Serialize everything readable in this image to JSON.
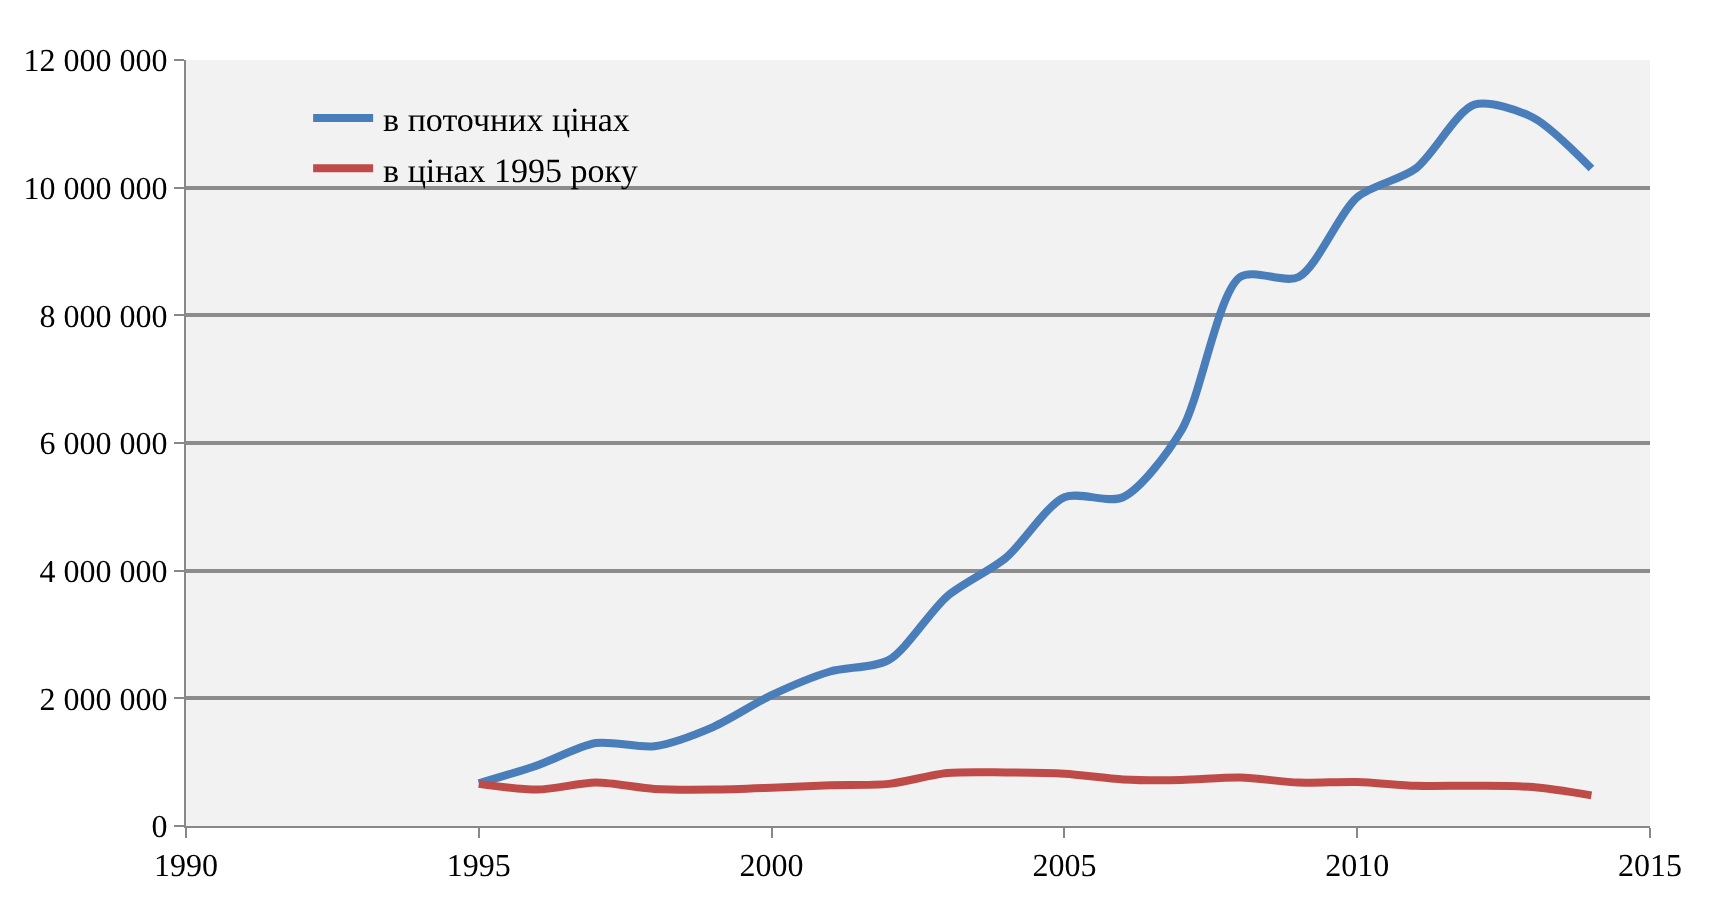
{
  "chart_data": {
    "type": "line",
    "x": [
      1995,
      1996,
      1997,
      1998,
      1999,
      2000,
      2001,
      2002,
      2003,
      2004,
      2005,
      2006,
      2007,
      2008,
      2009,
      2010,
      2011,
      2012,
      2013,
      2014
    ],
    "series": [
      {
        "name": "в поточних цінах",
        "color": "#4a7ebb",
        "values": [
          670000,
          950000,
          1300000,
          1250000,
          1550000,
          2050000,
          2420000,
          2600000,
          3600000,
          4200000,
          5150000,
          5150000,
          6200000,
          8600000,
          8600000,
          9850000,
          10300000,
          11300000,
          11100000,
          10300000
        ]
      },
      {
        "name": "в цінах 1995 року",
        "color": "#be4b48",
        "values": [
          660000,
          570000,
          680000,
          580000,
          570000,
          600000,
          640000,
          660000,
          830000,
          840000,
          820000,
          730000,
          720000,
          760000,
          680000,
          690000,
          630000,
          630000,
          610000,
          480000
        ]
      }
    ],
    "xlim": [
      1990,
      2015
    ],
    "xticks": [
      1990,
      1995,
      2000,
      2005,
      2010,
      2015
    ],
    "ylim": [
      0,
      12000000
    ],
    "yticks": [
      {
        "value": 0,
        "label": "0"
      },
      {
        "value": 2000000,
        "label": "2 000 000"
      },
      {
        "value": 4000000,
        "label": "4 000 000"
      },
      {
        "value": 6000000,
        "label": "6 000 000"
      },
      {
        "value": 8000000,
        "label": "8 000 000"
      },
      {
        "value": 10000000,
        "label": "10 000 000"
      },
      {
        "value": 12000000,
        "label": "12 000 000"
      }
    ],
    "grid": "y",
    "legend": "top left",
    "marker": "none",
    "line_style": "solid"
  }
}
